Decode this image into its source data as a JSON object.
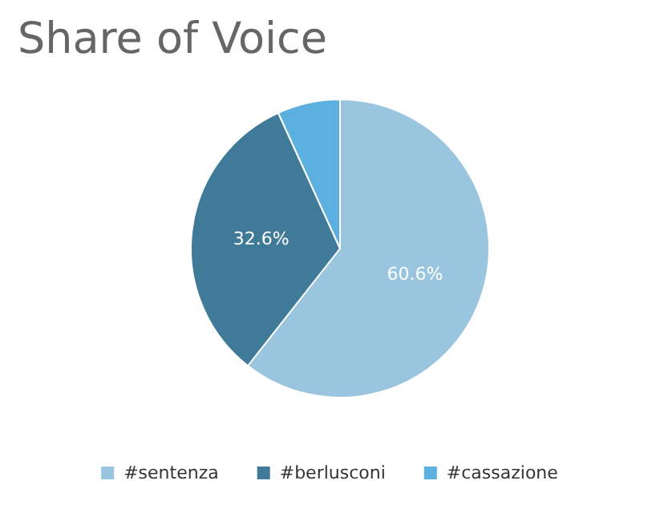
{
  "chart_data": {
    "type": "pie",
    "title": "Share of Voice",
    "categories": [
      "#sentenza",
      "#berlusconi",
      "#cassazione"
    ],
    "values": [
      60.6,
      32.6,
      6.8
    ],
    "colors": [
      "#9ac5de",
      "#3f7a98",
      "#5bb0e0"
    ],
    "value_labels": [
      "60.6%",
      "32.6%",
      null
    ],
    "legend": "bottom"
  }
}
